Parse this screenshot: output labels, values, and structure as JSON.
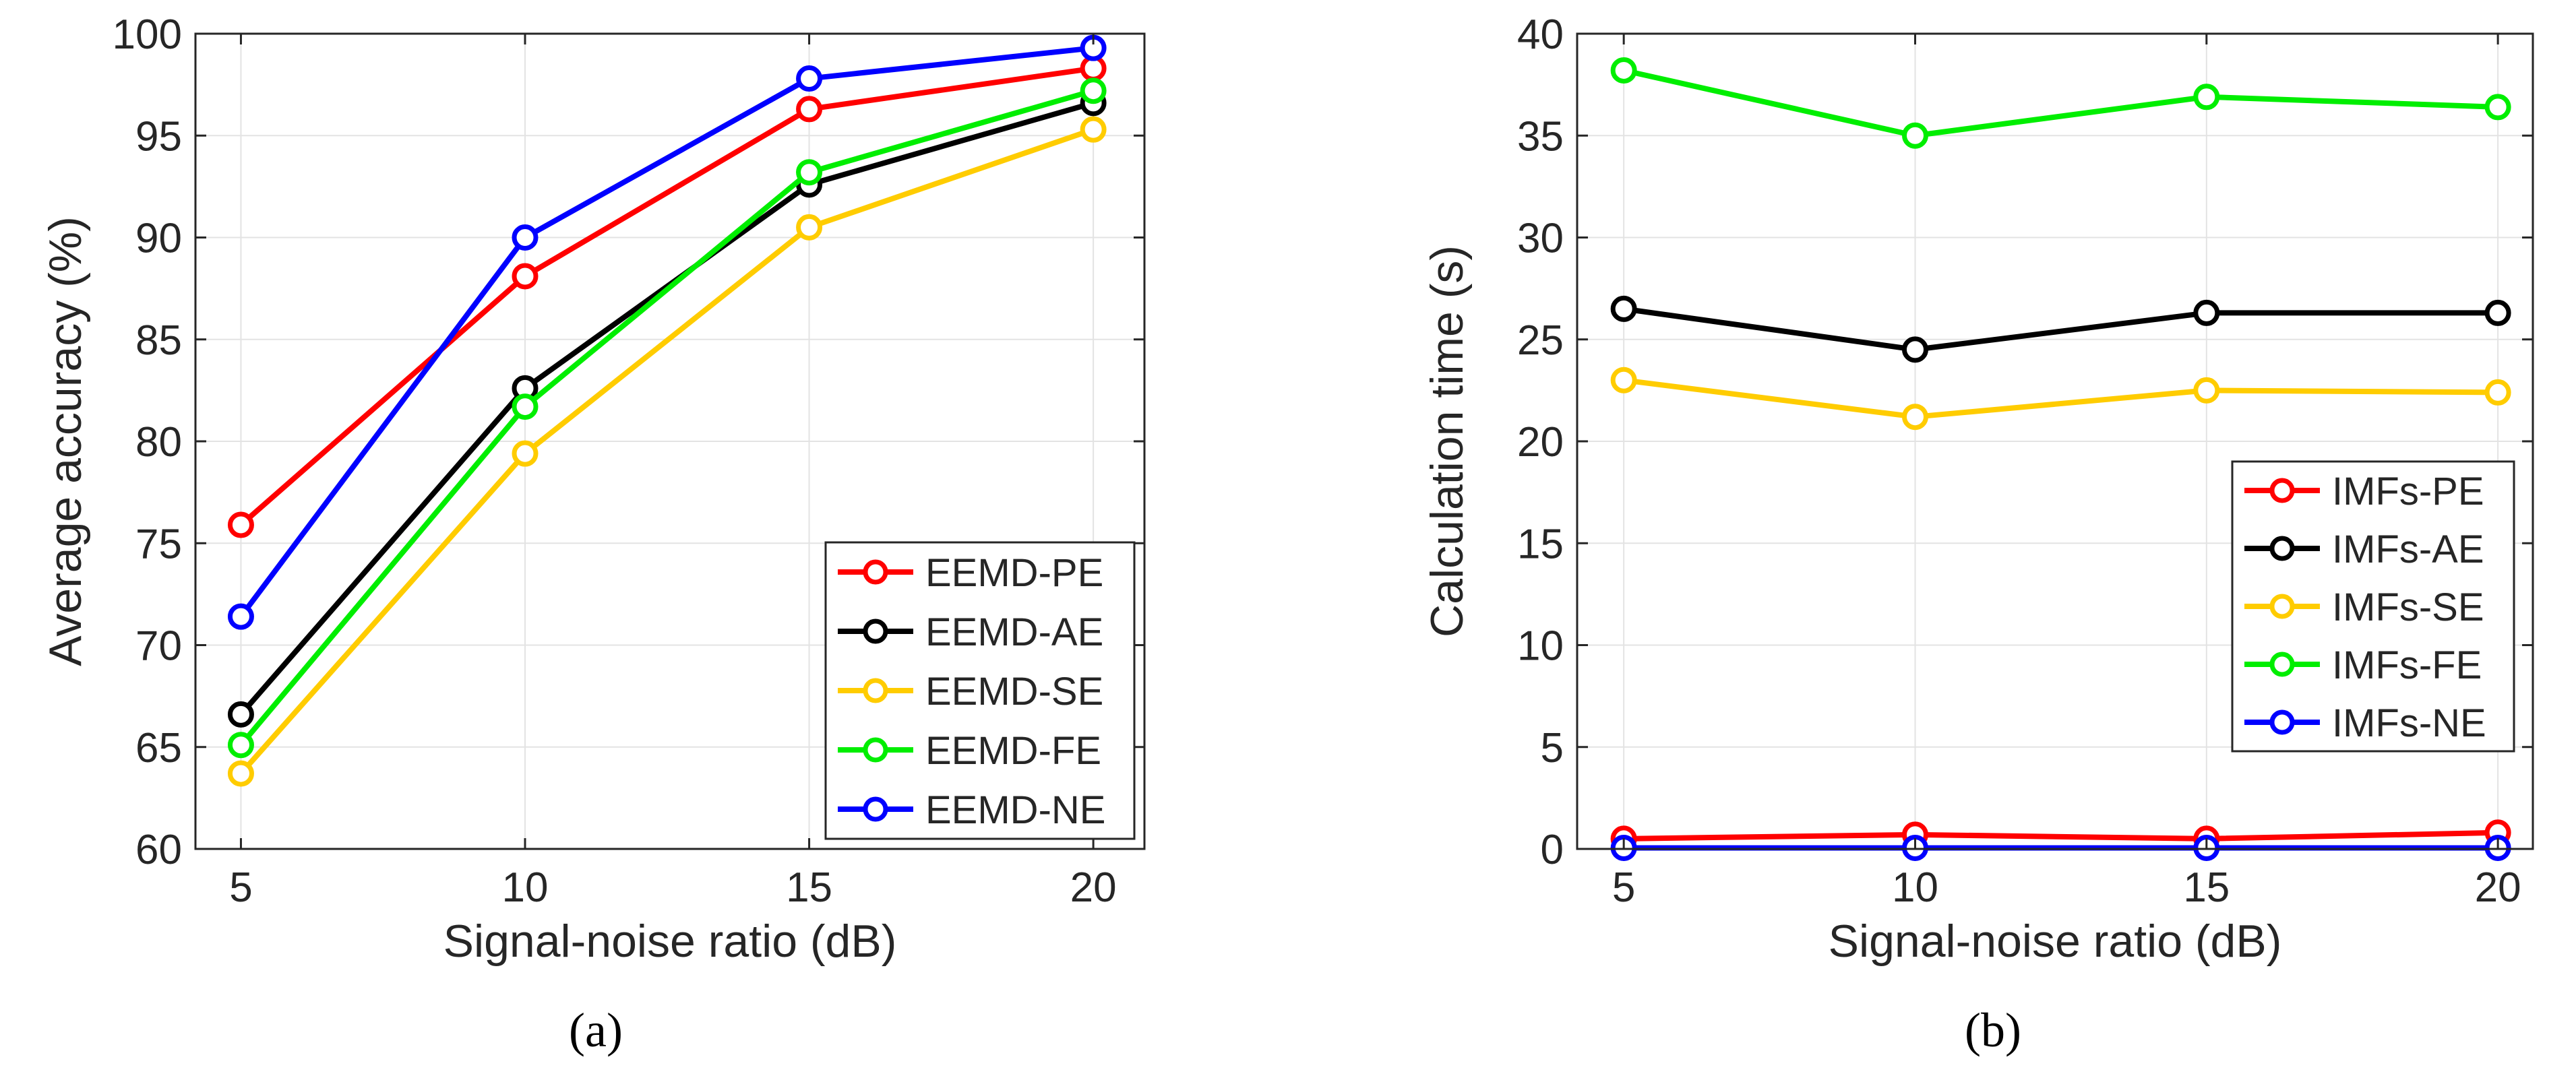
{
  "chart_data": [
    {
      "type": "line",
      "panel_label": "(a)",
      "x": [
        5,
        10,
        15,
        20
      ],
      "xlabel": "Signal-noise ratio (dB)",
      "ylabel": "Average accuracy (%)",
      "xlim": [
        4.2,
        20.9
      ],
      "ylim": [
        60,
        100
      ],
      "xticks": [
        5,
        10,
        15,
        20
      ],
      "yticks": [
        60,
        65,
        70,
        75,
        80,
        85,
        90,
        95,
        100
      ],
      "grid": true,
      "legend_position": "bottom-right",
      "series": [
        {
          "name": "EEMD-PE",
          "color": "#ff0000",
          "values": [
            75.9,
            88.1,
            96.3,
            98.3
          ]
        },
        {
          "name": "EEMD-AE",
          "color": "#000000",
          "values": [
            66.6,
            82.6,
            92.6,
            96.6
          ]
        },
        {
          "name": "EEMD-SE",
          "color": "#ffcc00",
          "values": [
            63.7,
            79.4,
            90.5,
            95.3
          ]
        },
        {
          "name": "EEMD-FE",
          "color": "#00ee00",
          "values": [
            65.1,
            81.7,
            93.2,
            97.2
          ]
        },
        {
          "name": "EEMD-NE",
          "color": "#0000ff",
          "values": [
            71.4,
            90.0,
            97.8,
            99.3
          ]
        }
      ]
    },
    {
      "type": "line",
      "panel_label": "(b)",
      "x": [
        5,
        10,
        15,
        20
      ],
      "xlabel": "Signal-noise ratio (dB)",
      "ylabel": "Calculation time (s)",
      "xlim": [
        4.2,
        20.6
      ],
      "ylim": [
        0,
        40
      ],
      "xticks": [
        5,
        10,
        15,
        20
      ],
      "yticks": [
        0,
        5,
        10,
        15,
        20,
        25,
        30,
        35,
        40
      ],
      "grid": true,
      "legend_position": "right-middle",
      "series": [
        {
          "name": "IMFs-PE",
          "color": "#ff0000",
          "values": [
            0.5,
            0.7,
            0.5,
            0.8
          ]
        },
        {
          "name": "IMFs-AE",
          "color": "#000000",
          "values": [
            26.5,
            24.5,
            26.3,
            26.3
          ]
        },
        {
          "name": "IMFs-SE",
          "color": "#ffcc00",
          "values": [
            23.0,
            21.2,
            22.5,
            22.4
          ]
        },
        {
          "name": "IMFs-FE",
          "color": "#00ee00",
          "values": [
            38.2,
            35.0,
            36.9,
            36.4
          ]
        },
        {
          "name": "IMFs-NE",
          "color": "#0000ff",
          "values": [
            0.05,
            0.05,
            0.05,
            0.05
          ]
        }
      ]
    }
  ]
}
